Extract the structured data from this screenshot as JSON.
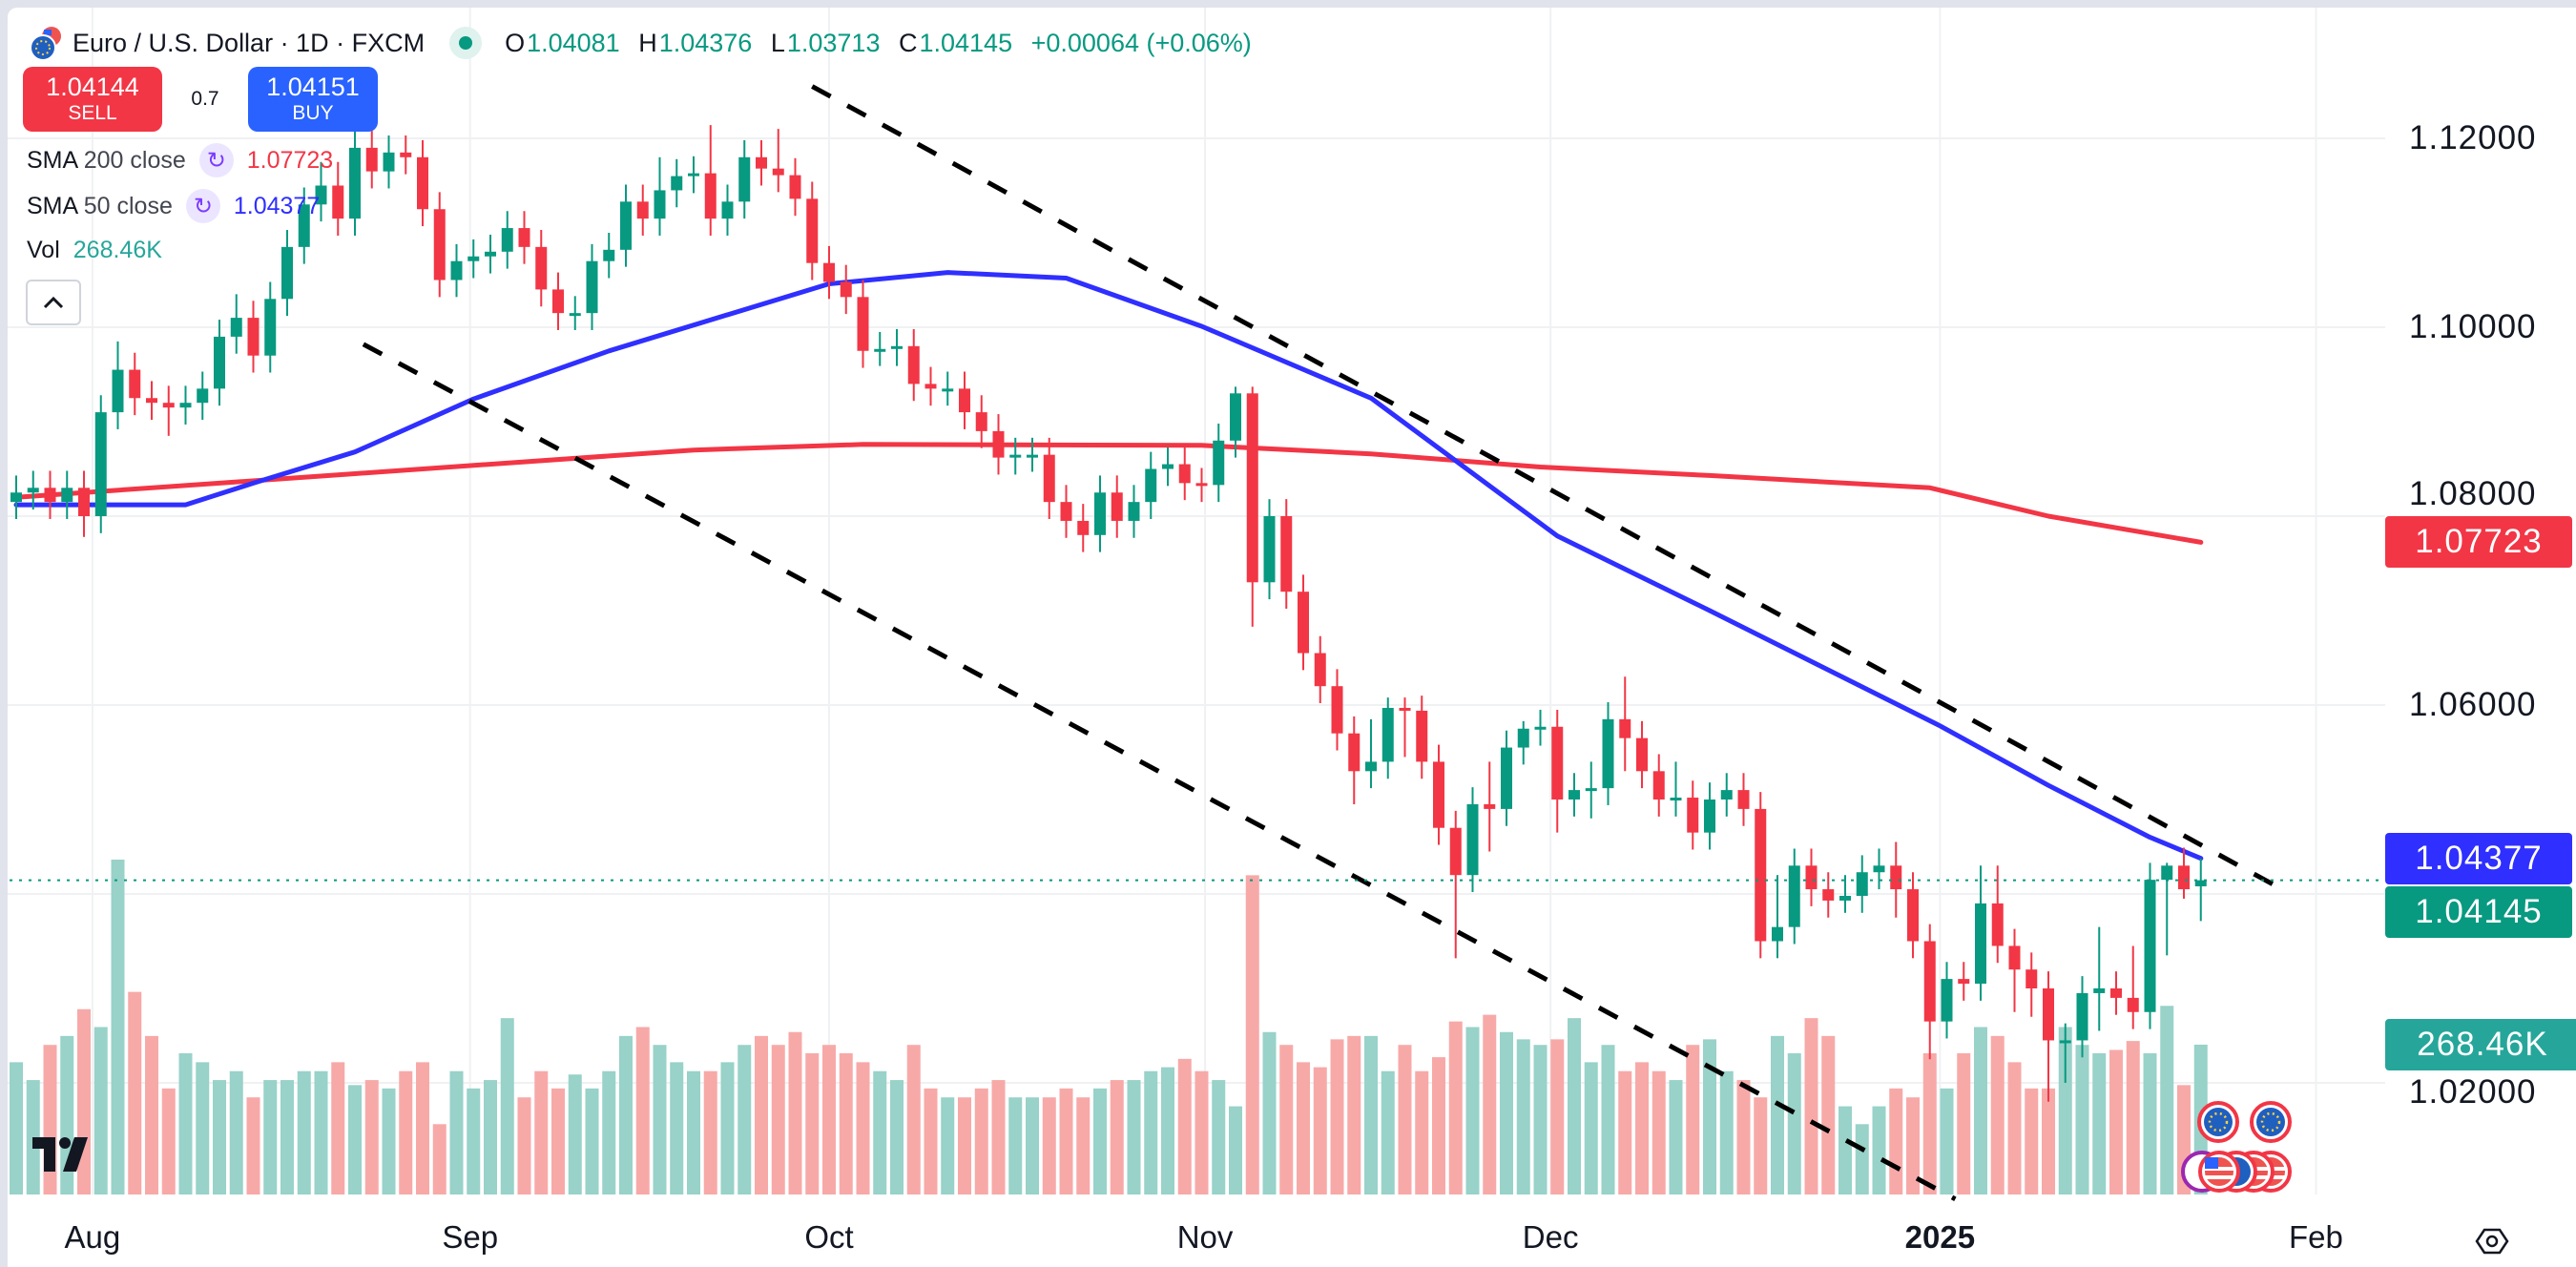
{
  "header": {
    "symbol": "Euro / U.S. Dollar · 1D · FXCM",
    "o_label": "O",
    "o": "1.04081",
    "h_label": "H",
    "h": "1.04376",
    "l_label": "L",
    "l": "1.03713",
    "c_label": "C",
    "c": "1.04145",
    "change": "+0.00064 (+0.06%)"
  },
  "trade": {
    "sell_price": "1.04144",
    "sell_label": "SELL",
    "spread": "0.7",
    "buy_price": "1.04151",
    "buy_label": "BUY"
  },
  "legend": {
    "sma200_name": "SMA",
    "sma200_params": "200 close",
    "sma200_value": "1.07723",
    "sma50_name": "SMA",
    "sma50_params": "50 close",
    "sma50_value": "1.04377",
    "vol_name": "Vol",
    "vol_value": "268.46K",
    "collapse_icon": "chevron-up-icon"
  },
  "price_tags": {
    "sma200": "1.07723",
    "sma50": "1.04377",
    "last": "1.04145",
    "volume": "268.46K"
  },
  "colors": {
    "up": "#089981",
    "down": "#f23645",
    "vol_up": "#98d2c9",
    "vol_down": "#f7a9a8",
    "sma200": "#f23645",
    "sma50": "#2f2fff",
    "sell": "#f23645",
    "buy": "#2962ff",
    "vol_tag": "#26a69a"
  },
  "chart_data": {
    "type": "candlestick",
    "title": "Euro / U.S. Dollar · 1D · FXCM",
    "ylim": [
      1.009,
      1.128
    ],
    "y_ticks": [
      {
        "value": 1.12,
        "label": "1.12000"
      },
      {
        "value": 1.1,
        "label": "1.10000"
      },
      {
        "value": 1.08,
        "label": "1.08000"
      },
      {
        "value": 1.06,
        "label": "1.06000"
      },
      {
        "value": 1.02,
        "label": "1.02000"
      }
    ],
    "x_ticks": [
      {
        "index": 4.5,
        "label": "Aug",
        "bold": false
      },
      {
        "index": 26.8,
        "label": "Sep",
        "bold": false
      },
      {
        "index": 48.0,
        "label": "Oct",
        "bold": false
      },
      {
        "index": 70.2,
        "label": "Nov",
        "bold": false
      },
      {
        "index": 90.6,
        "label": "Dec",
        "bold": false
      },
      {
        "index": 113.6,
        "label": "2025",
        "bold": true
      },
      {
        "index": 135.8,
        "label": "Feb",
        "bold": false
      }
    ],
    "open": [
      1.0815,
      1.0825,
      1.083,
      1.0815,
      1.083,
      1.08,
      1.091,
      1.0955,
      1.0925,
      1.092,
      1.0915,
      1.092,
      1.0935,
      1.099,
      1.101,
      1.097,
      1.103,
      1.1085,
      1.113,
      1.115,
      1.1115,
      1.119,
      1.1165,
      1.1185,
      1.118,
      1.1125,
      1.105,
      1.107,
      1.1075,
      1.108,
      1.1105,
      1.1085,
      1.104,
      1.1015,
      1.1015,
      1.107,
      1.1082,
      1.1133,
      1.1115,
      1.1145,
      1.116,
      1.1163,
      1.1115,
      1.1133,
      1.118,
      1.1168,
      1.1161,
      1.1136,
      1.1068,
      1.1048,
      1.1032,
      1.0975,
      1.0977,
      1.098,
      1.094,
      1.0935,
      1.0935,
      1.091,
      1.089,
      1.0862,
      1.0865,
      1.0865,
      1.0815,
      1.0795,
      1.078,
      1.0825,
      1.0795,
      1.0815,
      1.085,
      1.0855,
      1.0835,
      1.0833,
      1.088,
      1.093,
      1.073,
      1.08,
      1.072,
      1.0655,
      1.062,
      1.057,
      1.053,
      1.054,
      1.0597,
      1.0594,
      1.054,
      1.047,
      1.042,
      1.0495,
      1.049,
      1.0555,
      1.0575,
      1.0577,
      1.05,
      1.051,
      1.0512,
      1.0585,
      1.0565,
      1.053,
      1.05,
      1.0502,
      1.0465,
      1.05,
      1.051,
      1.049,
      1.035,
      1.0365,
      1.043,
      1.0405,
      1.0393,
      1.0398,
      1.0423,
      1.043,
      1.0405,
      1.035,
      1.0265,
      1.031,
      1.0305,
      1.039,
      1.0345,
      1.032,
      1.03,
      1.0245,
      1.0245,
      1.0295,
      1.03,
      1.029,
      1.0275,
      1.0415,
      1.043,
      1.04081
    ],
    "high": [
      1.0843,
      1.0848,
      1.0848,
      1.0848,
      1.0848,
      1.0928,
      1.0985,
      1.0973,
      1.0943,
      1.0938,
      1.0938,
      1.0953,
      1.1008,
      1.1035,
      1.1028,
      1.1048,
      1.1103,
      1.1148,
      1.1175,
      1.1175,
      1.1208,
      1.1208,
      1.1203,
      1.1203,
      1.1198,
      1.1143,
      1.1088,
      1.1093,
      1.1098,
      1.1123,
      1.1123,
      1.1103,
      1.1058,
      1.1033,
      1.1088,
      1.11,
      1.1151,
      1.1151,
      1.118,
      1.1178,
      1.1181,
      1.1214,
      1.1151,
      1.1198,
      1.1198,
      1.121,
      1.1179,
      1.1154,
      1.1086,
      1.1066,
      1.105,
      1.0995,
      1.0998,
      1.0998,
      1.0958,
      1.0953,
      1.0953,
      1.0928,
      1.0908,
      1.0883,
      1.0883,
      1.0883,
      1.0833,
      1.0813,
      1.0843,
      1.0843,
      1.0833,
      1.0868,
      1.0873,
      1.0873,
      1.0851,
      1.0898,
      1.0937,
      1.0937,
      1.0818,
      1.0818,
      1.0738,
      1.0673,
      1.0638,
      1.0588,
      1.0585,
      1.0608,
      1.0608,
      1.061,
      1.0558,
      1.0488,
      1.0513,
      1.054,
      1.0573,
      1.0583,
      1.0595,
      1.0595,
      1.0528,
      1.054,
      1.0603,
      1.063,
      1.0583,
      1.0548,
      1.054,
      1.052,
      1.0518,
      1.0528,
      1.0528,
      1.0508,
      1.042,
      1.0448,
      1.0448,
      1.0423,
      1.042,
      1.0441,
      1.0448,
      1.0455,
      1.0423,
      1.0368,
      1.0328,
      1.0328,
      1.043,
      1.043,
      1.0363,
      1.0338,
      1.0318,
      1.0263,
      1.0313,
      1.0365,
      1.0318,
      1.0345,
      1.0433,
      1.0433,
      1.0449,
      1.04376
    ],
    "low": [
      1.0797,
      1.0807,
      1.0797,
      1.0797,
      1.0778,
      1.0782,
      1.0892,
      1.0907,
      1.0902,
      1.0885,
      1.0897,
      1.0902,
      1.0917,
      1.0972,
      1.0952,
      1.0952,
      1.1012,
      1.1067,
      1.1112,
      1.1097,
      1.1097,
      1.1147,
      1.1147,
      1.1162,
      1.1107,
      1.1032,
      1.1032,
      1.1052,
      1.1057,
      1.1062,
      1.1067,
      1.1022,
      1.0997,
      1.0997,
      1.0997,
      1.1052,
      1.1064,
      1.1097,
      1.1097,
      1.1127,
      1.1142,
      1.1097,
      1.1097,
      1.1115,
      1.115,
      1.1143,
      1.1118,
      1.105,
      1.103,
      1.1014,
      1.0957,
      1.0959,
      1.0959,
      1.0922,
      1.0917,
      1.0917,
      1.0892,
      1.0872,
      1.0844,
      1.0844,
      1.0847,
      1.0797,
      1.0777,
      1.0762,
      1.0762,
      1.0777,
      1.0777,
      1.0797,
      1.0832,
      1.0817,
      1.0815,
      1.0815,
      1.0862,
      1.0683,
      1.0712,
      1.0702,
      1.0637,
      1.0602,
      1.0552,
      1.0495,
      1.0512,
      1.0522,
      1.0545,
      1.0522,
      1.0452,
      1.0332,
      1.0402,
      1.0445,
      1.0472,
      1.0537,
      1.0557,
      1.0465,
      1.0482,
      1.048,
      1.0494,
      1.053,
      1.0512,
      1.0482,
      1.0482,
      1.0447,
      1.0447,
      1.0482,
      1.0472,
      1.0332,
      1.0332,
      1.0347,
      1.0387,
      1.0375,
      1.038,
      1.038,
      1.0405,
      1.0375,
      1.0332,
      1.0225,
      1.0247,
      1.0287,
      1.0287,
      1.0327,
      1.0275,
      1.027,
      1.018,
      1.02,
      1.0227,
      1.0255,
      1.0272,
      1.0257,
      1.0257,
      1.0335,
      1.0395,
      1.03713
    ],
    "close": [
      1.0825,
      1.083,
      1.0815,
      1.083,
      1.08,
      1.091,
      1.0955,
      1.0925,
      1.092,
      1.0915,
      1.092,
      1.0935,
      1.099,
      1.101,
      1.097,
      1.103,
      1.1085,
      1.113,
      1.115,
      1.1115,
      1.119,
      1.1165,
      1.1185,
      1.118,
      1.1125,
      1.105,
      1.107,
      1.1075,
      1.108,
      1.1105,
      1.1085,
      1.104,
      1.1015,
      1.1015,
      1.107,
      1.1082,
      1.1133,
      1.1115,
      1.1145,
      1.116,
      1.1163,
      1.1115,
      1.1133,
      1.118,
      1.1168,
      1.1161,
      1.1136,
      1.1068,
      1.1048,
      1.1032,
      1.0975,
      1.0977,
      1.098,
      1.094,
      1.0935,
      1.0935,
      1.091,
      1.089,
      1.0862,
      1.0865,
      1.0865,
      1.0815,
      1.0795,
      1.078,
      1.0825,
      1.0795,
      1.0815,
      1.085,
      1.0855,
      1.0835,
      1.0833,
      1.088,
      1.093,
      1.073,
      1.08,
      1.072,
      1.0655,
      1.062,
      1.057,
      1.053,
      1.054,
      1.0597,
      1.0594,
      1.054,
      1.047,
      1.042,
      1.0495,
      1.049,
      1.0555,
      1.0575,
      1.0577,
      1.05,
      1.051,
      1.0512,
      1.0585,
      1.0565,
      1.053,
      1.05,
      1.0502,
      1.0465,
      1.05,
      1.051,
      1.049,
      1.035,
      1.0365,
      1.043,
      1.0405,
      1.0393,
      1.0398,
      1.0423,
      1.043,
      1.0405,
      1.035,
      1.0265,
      1.031,
      1.0305,
      1.039,
      1.0345,
      1.032,
      1.03,
      1.0245,
      1.0245,
      1.0295,
      1.03,
      1.029,
      1.0275,
      1.0415,
      1.043,
      1.0405,
      1.04145
    ],
    "volume_k": [
      237,
      205,
      268,
      284,
      332,
      300,
      600,
      363,
      284,
      190,
      253,
      237,
      205,
      221,
      174,
      205,
      205,
      221,
      221,
      237,
      196,
      205,
      190,
      221,
      237,
      126,
      221,
      190,
      205,
      316,
      174,
      221,
      190,
      215,
      190,
      221,
      284,
      300,
      268,
      237,
      221,
      221,
      237,
      268,
      284,
      268,
      291,
      253,
      268,
      253,
      237,
      221,
      205,
      268,
      190,
      174,
      174,
      190,
      205,
      174,
      174,
      174,
      190,
      174,
      190,
      205,
      205,
      221,
      228,
      243,
      221,
      205,
      158,
      572,
      291,
      268,
      237,
      228,
      278,
      284,
      284,
      221,
      268,
      221,
      246,
      310,
      300,
      322,
      291,
      278,
      268,
      278,
      316,
      237,
      268,
      221,
      237,
      221,
      205,
      268,
      278,
      221,
      205,
      174,
      284,
      253,
      316,
      284,
      158,
      126,
      158,
      190,
      174,
      253,
      190,
      253,
      300,
      284,
      237,
      190,
      190,
      300,
      268,
      253,
      259,
      275,
      253,
      338,
      196,
      268.46
    ],
    "series": [
      {
        "name": "SMA 200 close",
        "points": [
          [
            0,
            1.082
          ],
          [
            20,
            1.0845
          ],
          [
            40,
            1.087
          ],
          [
            50,
            1.0876
          ],
          [
            70,
            1.0875
          ],
          [
            80,
            1.0866
          ],
          [
            90,
            1.0852
          ],
          [
            100,
            1.0843
          ],
          [
            113,
            1.083
          ],
          [
            120,
            1.08
          ],
          [
            129,
            1.07723
          ]
        ]
      },
      {
        "name": "SMA 50 close",
        "points": [
          [
            0,
            1.0812
          ],
          [
            10,
            1.0812
          ],
          [
            14,
            1.0835
          ],
          [
            20,
            1.0868
          ],
          [
            27,
            1.0924
          ],
          [
            35,
            1.0975
          ],
          [
            48,
            1.1046
          ],
          [
            55,
            1.1058
          ],
          [
            62,
            1.1052
          ],
          [
            70,
            1.1001
          ],
          [
            80,
            1.0925
          ],
          [
            91,
            1.0779
          ],
          [
            100,
            1.07
          ],
          [
            113.6,
            1.0578
          ],
          [
            120,
            1.0515
          ],
          [
            126,
            1.046
          ],
          [
            129,
            1.04377
          ]
        ]
      }
    ],
    "trendlines": [
      {
        "name": "upper-trendline",
        "from": [
          47.0,
          1.1255
        ],
        "to": [
          134.0,
          1.0403
        ]
      },
      {
        "name": "lower-trendline",
        "from": [
          20.5,
          1.0982
        ],
        "to": [
          114.5,
          1.0077
        ]
      }
    ],
    "last_price": 1.04145
  }
}
